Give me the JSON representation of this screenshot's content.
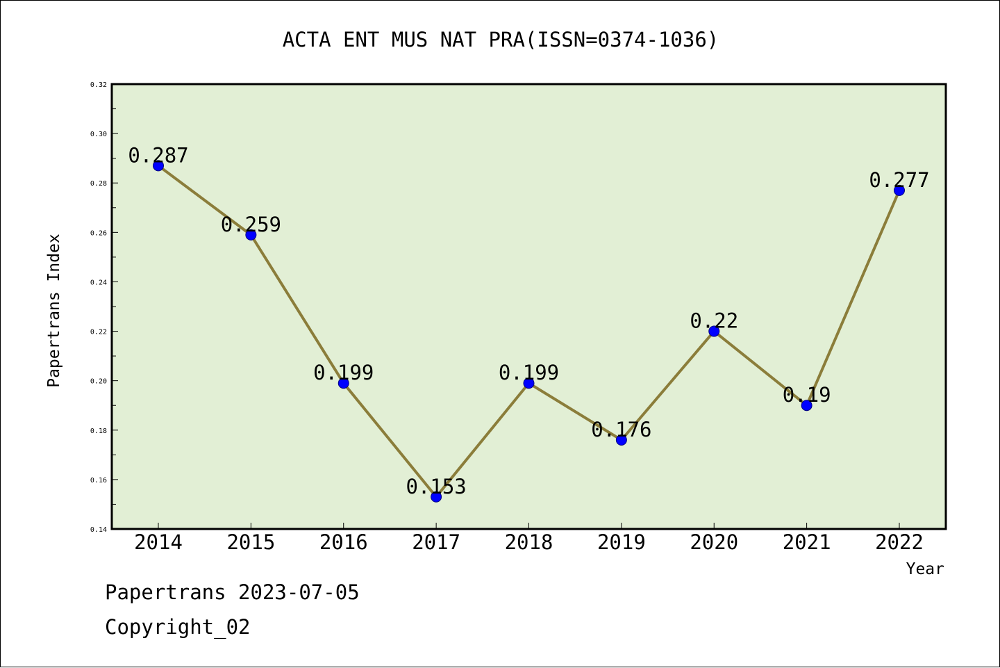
{
  "chart_data": {
    "type": "line",
    "title": "ACTA ENT MUS NAT PRA(ISSN=0374-1036)",
    "xlabel": "Year",
    "ylabel": "Papertrans Index",
    "categories": [
      "2014",
      "2015",
      "2016",
      "2017",
      "2018",
      "2019",
      "2020",
      "2021",
      "2022"
    ],
    "series": [
      {
        "values": [
          0.287,
          0.259,
          0.199,
          0.153,
          0.199,
          0.176,
          0.22,
          0.19,
          0.277
        ],
        "data_labels": [
          "0.287",
          "0.259",
          "0.199",
          "0.153",
          "0.199",
          "0.176",
          "0.22",
          "0.19",
          "0.277"
        ]
      }
    ],
    "ylim": [
      0.14,
      0.32
    ],
    "yticks": [
      "0.14",
      "0.16",
      "0.18",
      "0.20",
      "0.22",
      "0.24",
      "0.26",
      "0.28",
      "0.30",
      "0.32"
    ],
    "grid": false,
    "colors": {
      "plot_background": "#e2efd5",
      "line": "#8b7d3a",
      "marker": "#0000ff"
    }
  },
  "footer": {
    "line1": "Papertrans 2023-07-05",
    "line2": "Copyright_02"
  }
}
